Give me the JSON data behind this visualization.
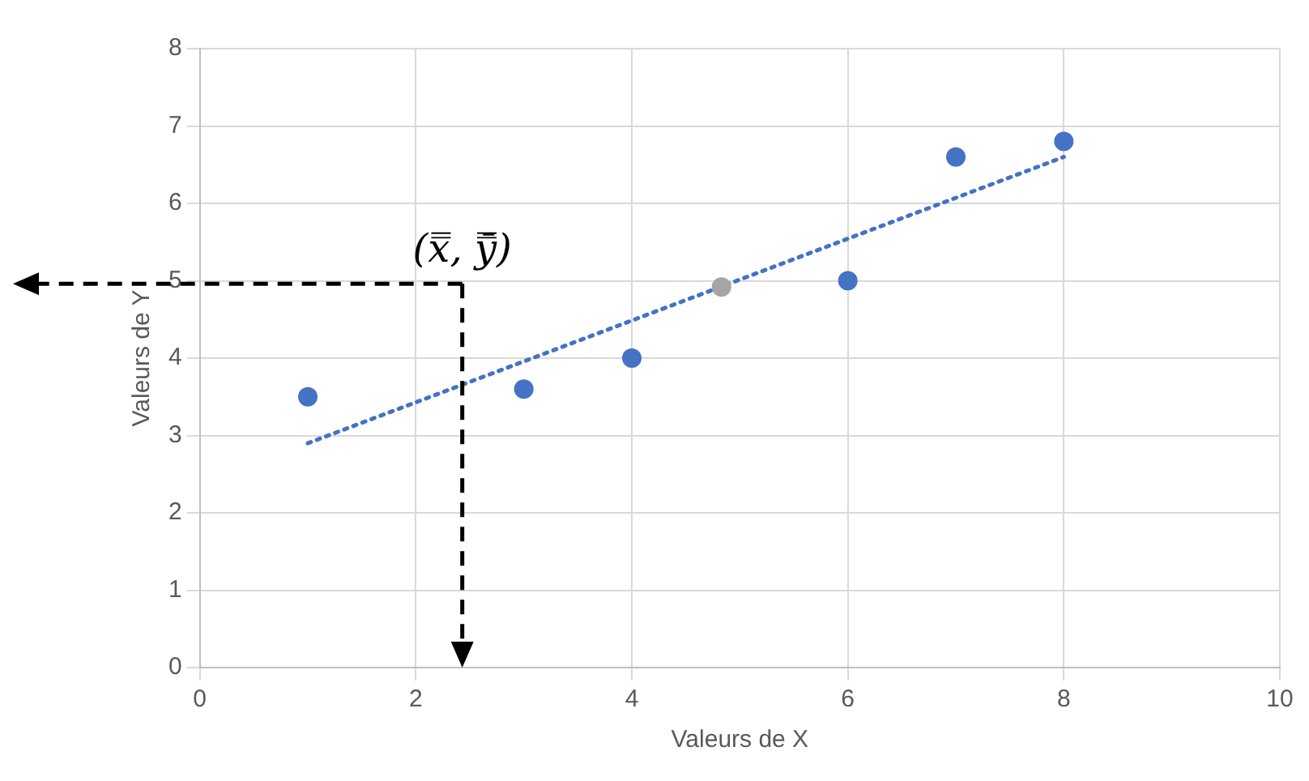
{
  "chart_data": {
    "type": "scatter",
    "xlabel": "Valeurs de X",
    "ylabel": "Valeurs de Y",
    "xlim": [
      0,
      10
    ],
    "xticks": [
      0,
      2,
      4,
      6,
      8,
      10
    ],
    "ylim": [
      0,
      8
    ],
    "yticks": [
      0,
      1,
      2,
      3,
      4,
      5,
      6,
      7,
      8
    ],
    "grid": true,
    "marker": "circle",
    "series": [
      {
        "color": "#4472c4",
        "x": [
          1,
          3,
          4,
          6,
          7,
          8
        ],
        "values": [
          3.5,
          3.6,
          4.0,
          5.0,
          6.6,
          6.8
        ]
      },
      {
        "color": "#a5a5a5",
        "x": [
          4.83
        ],
        "values": [
          4.92
        ]
      },
      {
        "type": "line",
        "color": "#4472c4",
        "x": [
          1,
          8
        ],
        "values": [
          2.9,
          6.6
        ],
        "line_style": "dotted",
        "marker": "none"
      }
    ],
    "annotations": [
      "(x̿, ȳ̿)"
    ]
  }
}
